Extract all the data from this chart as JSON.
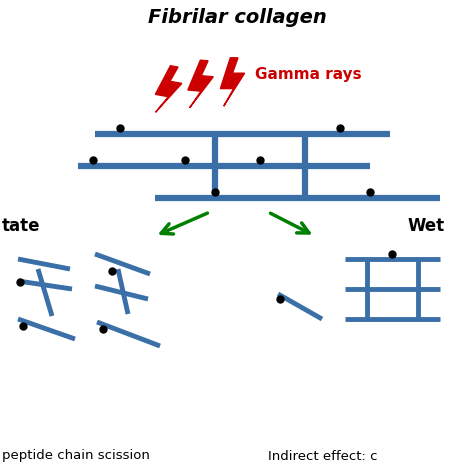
{
  "title": "Fibrilar collagen",
  "gamma_label": "Gamma rays",
  "gamma_color": "#cc0000",
  "blue_color": "#3a6fa8",
  "green_color": "#008000",
  "dot_color": "#000000",
  "label_left": "tate",
  "label_right": "Wet",
  "bottom_left": "peptide chain scission",
  "bottom_right": "Indirect effect: c",
  "bg_color": "#ffffff",
  "lw": 3.5,
  "dot_ms": 5
}
